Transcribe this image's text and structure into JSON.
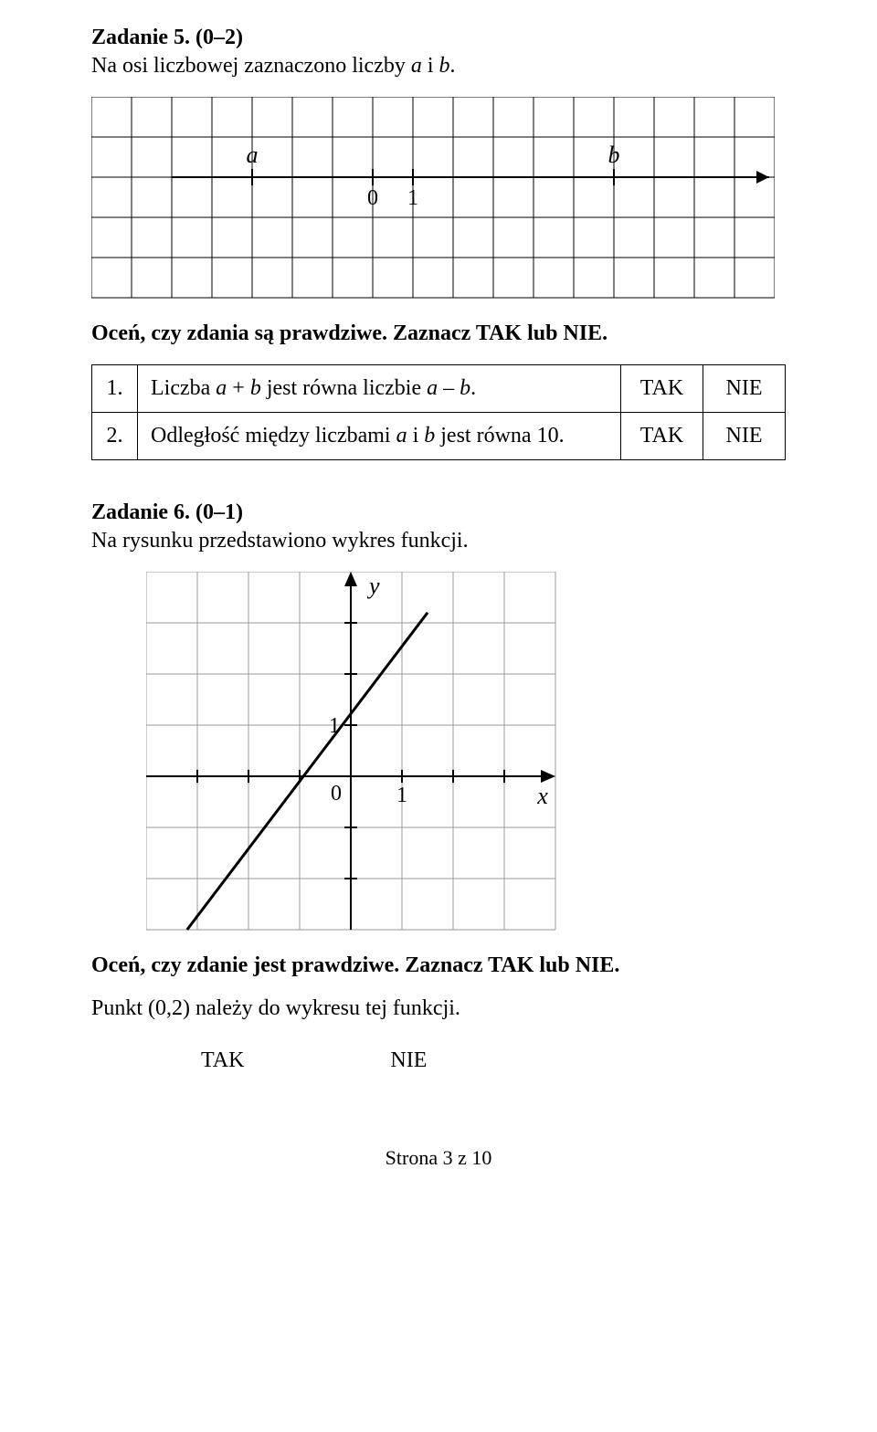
{
  "task5": {
    "header_prefix": "Zadanie 5. (0–2)",
    "body_pre": "Na osi liczbowej zaznaczono liczby ",
    "body_a": "a",
    "body_mid": " i ",
    "body_b": "b",
    "body_post": ".",
    "instruction": "Oceń, czy zdania są prawdziwe. Zaznacz TAK lub NIE.",
    "row1_num": "1.",
    "row1_pre": "Liczba  ",
    "row1_expr1_a": "a",
    "row1_expr1_plus": " + ",
    "row1_expr1_b": "b",
    "row1_mid": " jest równa liczbie  ",
    "row1_expr2_a": "a",
    "row1_expr2_minus": " – ",
    "row1_expr2_b": "b",
    "row1_post": ".",
    "row2_num": "2.",
    "row2_pre": "Odległość między liczbami ",
    "row2_a": "a",
    "row2_mid": " i ",
    "row2_b": "b",
    "row2_post": " jest równa 10.",
    "tak": "TAK",
    "nie": "NIE",
    "grid": {
      "cols": 17,
      "rows": 5,
      "cell": 44,
      "axis_row": 2,
      "axis_start_col": 2,
      "tick_a_col": 4,
      "tick_0_col": 7,
      "tick_1_col": 8,
      "tick_b_col": 13,
      "label_a": "a",
      "label_0": "0",
      "label_1": "1",
      "label_b": "b",
      "grid_color": "#000000",
      "grid_width": 1,
      "axis_width": 2
    }
  },
  "task6": {
    "header_prefix": "Zadanie 6. (0–1)",
    "body": "Na rysunku przedstawiono wykres funkcji.",
    "instruction": "Oceń, czy zdanie jest prawdziwe. Zaznacz TAK lub NIE.",
    "statement": "Punkt (0,2) należy do wykresu tej funkcji.",
    "tak": "TAK",
    "nie": "NIE",
    "grid": {
      "cols": 8,
      "rows": 7,
      "cell": 56,
      "origin_col": 4,
      "origin_row": 4,
      "label_y": "y",
      "label_x": "x",
      "label_0": "0",
      "label_1x": "1",
      "label_1y": "1",
      "grid_color": "#9a9a9a",
      "grid_width": 1,
      "axis_width": 2,
      "line_width": 3,
      "line_x1_u": -3.2,
      "line_y1_u": -3,
      "line_x2_u": 1.5,
      "line_y2_u": 3.2
    }
  },
  "footer": "Strona 3 z 10"
}
